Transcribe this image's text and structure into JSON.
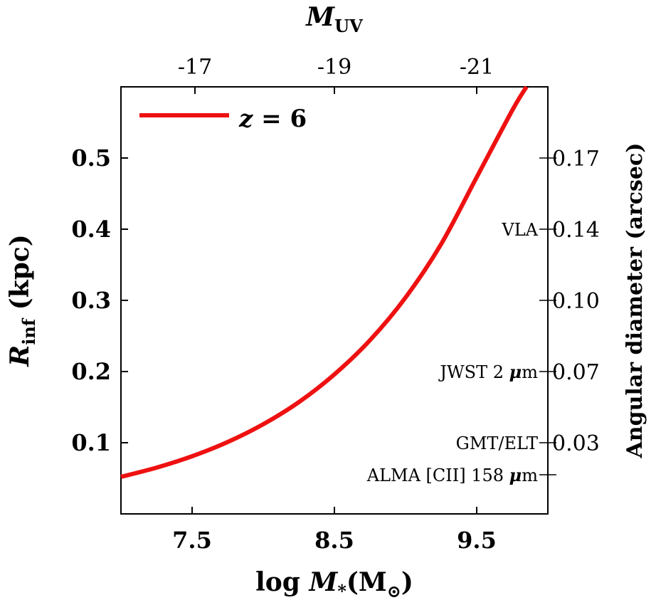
{
  "chart_data": {
    "type": "line",
    "xlabel": {
      "prefix": "log ",
      "var": "M",
      "sub": "*",
      "rest": "(M",
      "sun": "⊙",
      "close": ")"
    },
    "xlim": [
      7.0,
      10.0
    ],
    "xticks": [
      7.5,
      8.5,
      9.5
    ],
    "xtick_labels": [
      "7.5",
      "8.5",
      "9.5"
    ],
    "ylabel": {
      "var": "R",
      "sub": "inf",
      "rest": " (kpc)"
    },
    "ylim": [
      0.0,
      0.6
    ],
    "yticks": [
      0.1,
      0.2,
      0.3,
      0.4,
      0.5
    ],
    "ytick_labels": [
      "0.1",
      "0.2",
      "0.3",
      "0.4",
      "0.5"
    ],
    "top_axis": {
      "label": {
        "var": "M",
        "sub": "UV"
      },
      "ticks": [
        {
          "label": "-17",
          "at_x": 7.52
        },
        {
          "label": "-19",
          "at_x": 8.5
        },
        {
          "label": "-21",
          "at_x": 9.5
        }
      ]
    },
    "right_axis": {
      "label": "Angular diameter (arcsec)",
      "ticks": [
        {
          "label": "0.17",
          "at_y": 0.5
        },
        {
          "label": "0.14",
          "at_y": 0.4
        },
        {
          "label": "0.10",
          "at_y": 0.3
        },
        {
          "label": "0.07",
          "at_y": 0.2
        },
        {
          "label": "0.03",
          "at_y": 0.1
        },
        {
          "label": "",
          "at_y": 0.055
        }
      ],
      "annotations": [
        {
          "text": "VLA",
          "at_y": 0.4
        },
        {
          "text": "JWST 2 ",
          "mu": "μ",
          "unit": "m",
          "at_y": 0.2
        },
        {
          "text": "GMT/ELT",
          "at_y": 0.1
        },
        {
          "text": "ALMA [CII] 158 ",
          "mu": "μ",
          "unit": "m",
          "at_y": 0.055
        }
      ]
    },
    "series": [
      {
        "name": "z = 6",
        "color": "#ee1111",
        "x": [
          7.0,
          7.25,
          7.5,
          7.75,
          8.0,
          8.25,
          8.5,
          8.75,
          9.0,
          9.25,
          9.5,
          9.75,
          9.85
        ],
        "y": [
          0.052,
          0.065,
          0.081,
          0.101,
          0.126,
          0.157,
          0.196,
          0.244,
          0.304,
          0.379,
          0.473,
          0.567,
          0.6
        ]
      }
    ],
    "legend": {
      "position": "top-left",
      "label": {
        "var": "z",
        "eq": " = ",
        "val": "6"
      }
    },
    "grid": false
  }
}
